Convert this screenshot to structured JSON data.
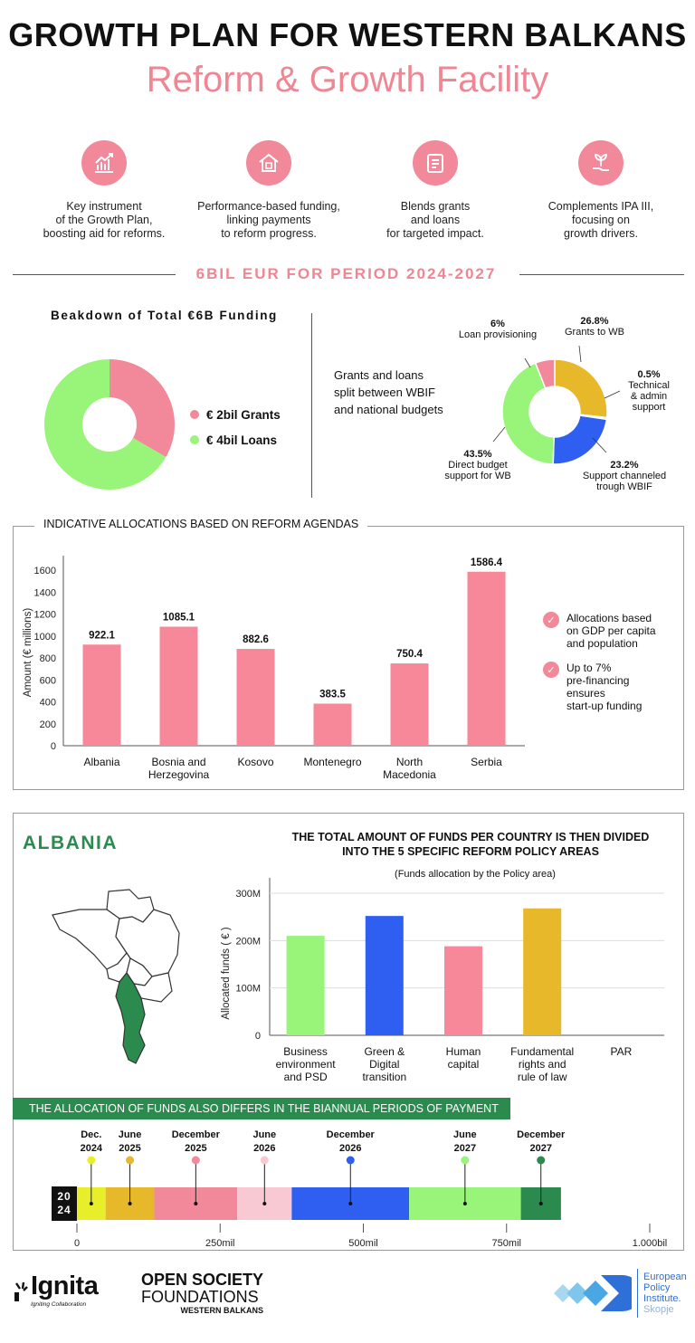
{
  "header": {
    "title": "GROWTH PLAN FOR WESTERN BALKANS",
    "subtitle": "Reform & Growth Facility"
  },
  "features": [
    {
      "icon": "chart-growth-icon",
      "text_lines": [
        "Key instrument",
        "of the Growth Plan,",
        "boosting aid for reforms."
      ]
    },
    {
      "icon": "house-coins-icon",
      "text_lines": [
        "Performance-based funding,",
        "linking payments",
        "to reform progress."
      ]
    },
    {
      "icon": "checklist-icon",
      "text_lines": [
        "Blends grants",
        "and loans",
        "for targeted impact."
      ]
    },
    {
      "icon": "plant-hand-icon",
      "text_lines": [
        "Complements IPA III,",
        "focusing on",
        "growth drivers."
      ]
    }
  ],
  "period_band": "6BIL EUR FOR PERIOD 2024-2027",
  "breakdown": {
    "title": "Beakdown of Total €6B Funding",
    "legend": [
      {
        "label": "€ 2bil Grants",
        "color": "#f2899a"
      },
      {
        "label": "€ 4bil Loans",
        "color": "#98f57a"
      }
    ],
    "slices": [
      {
        "label": "Grants",
        "value": 2,
        "color": "#f2899a"
      },
      {
        "label": "Loans",
        "value": 4,
        "color": "#98f57a"
      }
    ]
  },
  "split": {
    "caption_lines": [
      "Grants and loans",
      "split between WBIF",
      "and national budgets"
    ],
    "slices": [
      {
        "pct": "26.8%",
        "label_lines": [
          "Grants to WB"
        ],
        "value": 26.8,
        "color": "#e6b82a"
      },
      {
        "pct": "0.5%",
        "label_lines": [
          "Technical",
          "& admin",
          "support"
        ],
        "value": 0.5,
        "color": "#e6b82a"
      },
      {
        "pct": "23.2%",
        "label_lines": [
          "Support channeled",
          "trough WBIF"
        ],
        "value": 23.2,
        "color": "#2f5ff0"
      },
      {
        "pct": "43.5%",
        "label_lines": [
          "Direct budget",
          "support for WB"
        ],
        "value": 43.5,
        "color": "#98f57a"
      },
      {
        "pct": "6%",
        "label_lines": [
          "Loan provisioning"
        ],
        "value": 6,
        "color": "#f2899a"
      }
    ]
  },
  "allocations": {
    "title": "INDICATIVE ALLOCATIONS BASED ON REFORM AGENDAS",
    "notes": [
      {
        "lines": [
          "Allocations based",
          "on GDP per capita",
          "and population"
        ]
      },
      {
        "lines": [
          "Up to 7%",
          "pre-financing",
          "ensures",
          "start-up funding"
        ]
      }
    ]
  },
  "albania": {
    "name": "ALBANIA",
    "heading_lines": [
      "THE TOTAL AMOUNT OF FUNDS PER COUNTRY IS THEN DIVIDED",
      "INTO THE 5 SPECIFIC REFORM POLICY AREAS"
    ],
    "chart_caption": "(Funds allocation by the Policy area)"
  },
  "timeline": {
    "title": "THE ALLOCATION OF FUNDS ALSO DIFFERS IN THE BIANNUAL PERIODS OF PAYMENT",
    "year_badge": "2024",
    "axis_labels": [
      "0",
      "250mil",
      "500mil",
      "750mil",
      "1.000bil"
    ],
    "periods": [
      {
        "month": "Dec.",
        "year": "2024",
        "color": "#e8ef2a",
        "start": 0,
        "end": 50
      },
      {
        "month": "June",
        "year": "2025",
        "color": "#e6b82a",
        "start": 50,
        "end": 135
      },
      {
        "month": "December",
        "year": "2025",
        "color": "#f2899a",
        "start": 135,
        "end": 280
      },
      {
        "month": "June",
        "year": "2026",
        "color": "#f8c9d2",
        "start": 280,
        "end": 375
      },
      {
        "month": "December",
        "year": "2026",
        "color": "#2f5ff0",
        "start": 375,
        "end": 580
      },
      {
        "month": "June",
        "year": "2027",
        "color": "#98f57a",
        "start": 580,
        "end": 775
      },
      {
        "month": "December",
        "year": "2027",
        "color": "#2b8a4e",
        "start": 775,
        "end": 845
      }
    ]
  },
  "footer": {
    "ignita": "Ignita",
    "ignita_tag": "Igniting Collaboration",
    "osf_line1": "OPEN SOCIETY",
    "osf_line2": "FOUNDATIONS",
    "osf_line3": "WESTERN BALKANS",
    "epi_lines": [
      "European",
      "Policy",
      "Institute.",
      "Skopje"
    ]
  },
  "chart_data": [
    {
      "type": "bar",
      "title": "",
      "xlabel": "",
      "ylabel": "Amount (€ millions)",
      "categories": [
        "Albania",
        "Bosnia and Herzegovina",
        "Kosovo",
        "Montenegro",
        "North Macedonia",
        "Serbia"
      ],
      "category_lines": [
        [
          "Albania"
        ],
        [
          "Bosnia and",
          "Herzegovina"
        ],
        [
          "Kosovo"
        ],
        [
          "Montenegro"
        ],
        [
          "North",
          "Macedonia"
        ],
        [
          "Serbia"
        ]
      ],
      "values": [
        922.1,
        1085.1,
        882.6,
        383.5,
        750.4,
        1586.4
      ],
      "value_labels": [
        "922.1",
        "1085.1",
        "882.6",
        "383.5",
        "750.4",
        "1586.4"
      ],
      "ylim": [
        0,
        1700
      ],
      "yticks": [
        "0",
        "200",
        "400",
        "600",
        "800",
        "1000",
        "1200",
        "1400",
        "1600"
      ],
      "color": "#f7889a",
      "grid": false
    },
    {
      "type": "bar",
      "title": "",
      "xlabel": "",
      "ylabel": "Allocated funds ( € )",
      "categories": [
        "Business environment and PSD",
        "Green & Digital transition",
        "Human capital",
        "Fundamental rights and rule of law",
        "PAR"
      ],
      "category_lines": [
        [
          "Business",
          "environment",
          "and PSD"
        ],
        [
          "Green &",
          "Digital",
          "transition"
        ],
        [
          "Human",
          "capital"
        ],
        [
          "Fundamental",
          "rights and",
          "rule of law"
        ],
        [
          "PAR"
        ]
      ],
      "values": [
        210,
        252,
        188,
        268,
        0
      ],
      "colors": [
        "#98f57a",
        "#2f5ff0",
        "#f7889a",
        "#e6b82a",
        "#cccccc"
      ],
      "ylim": [
        0,
        300
      ],
      "yticks": [
        "0",
        "100M",
        "200M",
        "300M"
      ],
      "grid": true
    }
  ]
}
